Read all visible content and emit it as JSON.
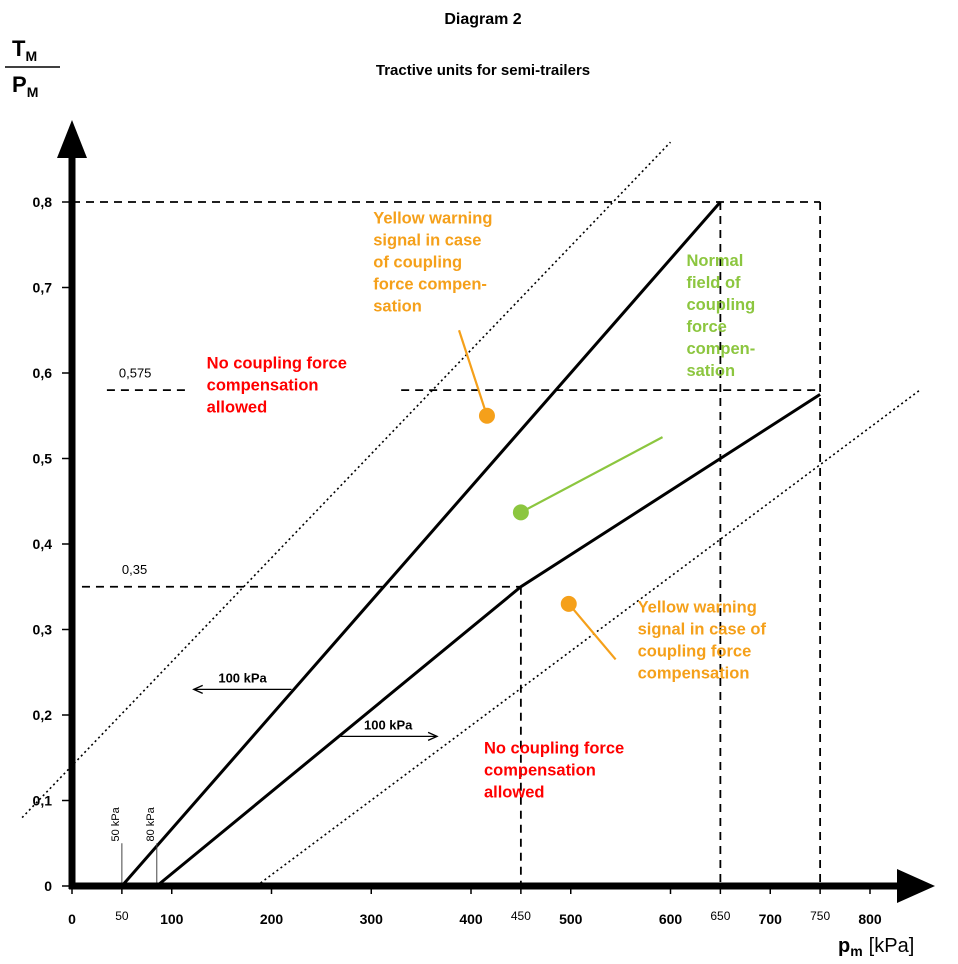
{
  "chart_data": {
    "type": "line",
    "title": "Diagram 2",
    "subtitle": "Tractive units for semi-trailers",
    "ylabel": {
      "numerator": "T",
      "numerator_sub": "M",
      "denominator": "P",
      "denominator_sub": "M"
    },
    "xlabel": {
      "main": "p",
      "sub": "m",
      "unit": "[kPa]"
    },
    "xlim": [
      0,
      800
    ],
    "ylim": [
      0,
      0.8
    ],
    "x_ticks": [
      {
        "v": 0,
        "label": "0",
        "small": false
      },
      {
        "v": 50,
        "label": "50",
        "small": true
      },
      {
        "v": 100,
        "label": "100",
        "small": false
      },
      {
        "v": 200,
        "label": "200",
        "small": false
      },
      {
        "v": 300,
        "label": "300",
        "small": false
      },
      {
        "v": 400,
        "label": "400",
        "small": false
      },
      {
        "v": 450,
        "label": "450",
        "small": true
      },
      {
        "v": 500,
        "label": "500",
        "small": false
      },
      {
        "v": 600,
        "label": "600",
        "small": false
      },
      {
        "v": 650,
        "label": "650",
        "small": true
      },
      {
        "v": 700,
        "label": "700",
        "small": false
      },
      {
        "v": 750,
        "label": "750",
        "small": true
      },
      {
        "v": 800,
        "label": "800",
        "small": false
      }
    ],
    "y_ticks": [
      {
        "v": 0,
        "label": "0"
      },
      {
        "v": 0.1,
        "label": "0,1"
      },
      {
        "v": 0.2,
        "label": "0,2"
      },
      {
        "v": 0.3,
        "label": "0,3"
      },
      {
        "v": 0.4,
        "label": "0,4"
      },
      {
        "v": 0.5,
        "label": "0,5"
      },
      {
        "v": 0.6,
        "label": "0,6"
      },
      {
        "v": 0.7,
        "label": "0,7"
      },
      {
        "v": 0.8,
        "label": "0,8"
      }
    ],
    "series": [
      {
        "points": [
          [
            50,
            0
          ],
          [
            650,
            0.8
          ]
        ],
        "style": "solid"
      },
      {
        "points": [
          [
            85,
            0
          ],
          [
            450,
            0.35
          ],
          [
            750,
            0.575
          ]
        ],
        "style": "solid"
      },
      {
        "points": [
          [
            -50,
            0.08
          ],
          [
            600,
            0.87
          ]
        ],
        "style": "dotted"
      },
      {
        "points": [
          [
            185,
            0
          ],
          [
            850,
            0.58
          ]
        ],
        "style": "dotted"
      }
    ],
    "reference_lines": [
      {
        "points": [
          [
            0,
            0.8
          ],
          [
            750,
            0.8
          ]
        ]
      },
      {
        "points": [
          [
            650,
            0.8
          ],
          [
            650,
            0
          ]
        ]
      },
      {
        "points": [
          [
            750,
            0.8
          ],
          [
            750,
            0
          ]
        ]
      },
      {
        "points": [
          [
            35,
            0.58
          ],
          [
            115,
            0.58
          ]
        ]
      },
      {
        "points": [
          [
            330,
            0.58
          ],
          [
            750,
            0.58
          ]
        ]
      },
      {
        "points": [
          [
            10,
            0.35
          ],
          [
            450,
            0.35
          ]
        ]
      },
      {
        "points": [
          [
            450,
            0.35
          ],
          [
            450,
            0
          ]
        ]
      }
    ],
    "level_labels": [
      {
        "text": "0,575",
        "x": 47,
        "y": 0.595
      },
      {
        "text": "0,35",
        "x": 50,
        "y": 0.365
      }
    ],
    "pressure_marks": [
      {
        "text": "50 kPa",
        "x": 50
      },
      {
        "text": "80 kPa",
        "x": 85
      }
    ],
    "arrows": [
      {
        "text": "100 kPa",
        "from": [
          220,
          0.23
        ],
        "to": [
          122,
          0.23
        ]
      },
      {
        "text": "100 kPa",
        "from": [
          268,
          0.175
        ],
        "to": [
          366,
          0.175
        ]
      }
    ],
    "annotations": [
      {
        "id": "yellow-upper",
        "lines": [
          "Yellow warning",
          "signal in case",
          "of coupling",
          "force compen-",
          "sation"
        ],
        "x": 302,
        "y": 0.775,
        "color": "#f5a01a",
        "leader": [
          [
            388,
            0.65
          ],
          [
            416,
            0.55
          ]
        ]
      },
      {
        "id": "normal-field",
        "lines": [
          "Normal",
          "field of",
          "coupling",
          "force",
          "compen-",
          "sation"
        ],
        "x": 616,
        "y": 0.725,
        "color": "#8cc63f",
        "leader": [
          [
            592,
            0.525
          ],
          [
            450,
            0.437
          ]
        ]
      },
      {
        "id": "red-upper",
        "lines": [
          "No coupling force",
          "compensation",
          "allowed"
        ],
        "x": 135,
        "y": 0.605,
        "color": "#ff0000",
        "leader": null
      },
      {
        "id": "yellow-lower",
        "lines": [
          "Yellow warning",
          "signal in case of",
          "coupling force",
          "compensation"
        ],
        "x": 567,
        "y": 0.32,
        "color": "#f5a01a",
        "leader": [
          [
            545,
            0.265
          ],
          [
            498,
            0.33
          ]
        ]
      },
      {
        "id": "red-lower",
        "lines": [
          "No coupling force",
          "compensation",
          "allowed"
        ],
        "x": 413,
        "y": 0.155,
        "color": "#ff0000",
        "leader": null
      }
    ],
    "markers": [
      {
        "x": 416,
        "y": 0.55,
        "color": "#f5a01a"
      },
      {
        "x": 450,
        "y": 0.437,
        "color": "#8cc63f"
      },
      {
        "x": 498,
        "y": 0.33,
        "color": "#f5a01a"
      }
    ],
    "grid": false,
    "legend": "none"
  }
}
